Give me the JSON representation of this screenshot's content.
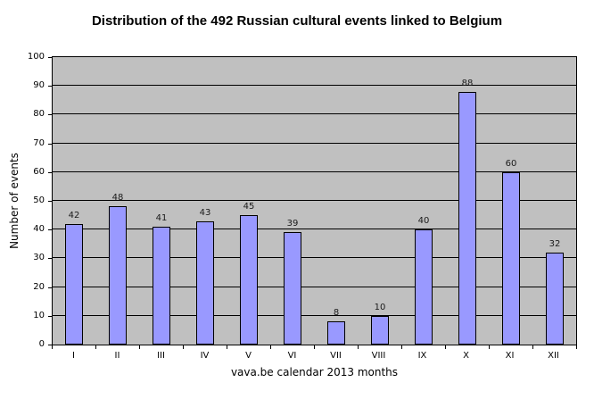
{
  "chart_data": {
    "type": "bar",
    "title": "Distribution of the 492 Russian cultural events linked to Belgium",
    "categories": [
      "I",
      "II",
      "III",
      "IV",
      "V",
      "VI",
      "VII",
      "VIII",
      "IX",
      "X",
      "XI",
      "XII"
    ],
    "values": [
      42,
      48,
      41,
      43,
      45,
      39,
      8,
      10,
      40,
      88,
      60,
      32
    ],
    "xlabel": "vava.be calendar 2013 months",
    "ylabel": "Number of events",
    "ylim": [
      0,
      100
    ],
    "ytick_step": 10,
    "ytick_labels": [
      "0",
      "10",
      "20",
      "30",
      "40",
      "50",
      "60",
      "70",
      "80",
      "90",
      "100"
    ],
    "grid": true,
    "legend": "none",
    "colors": {
      "bar_fill": "#9999FF",
      "bar_border": "#000000",
      "plot_background": "#C0C0C0",
      "gridline": "#000000",
      "page_background": "#FFFFFF",
      "text": "#000000",
      "value_label_text": "#1a1a1a"
    }
  }
}
